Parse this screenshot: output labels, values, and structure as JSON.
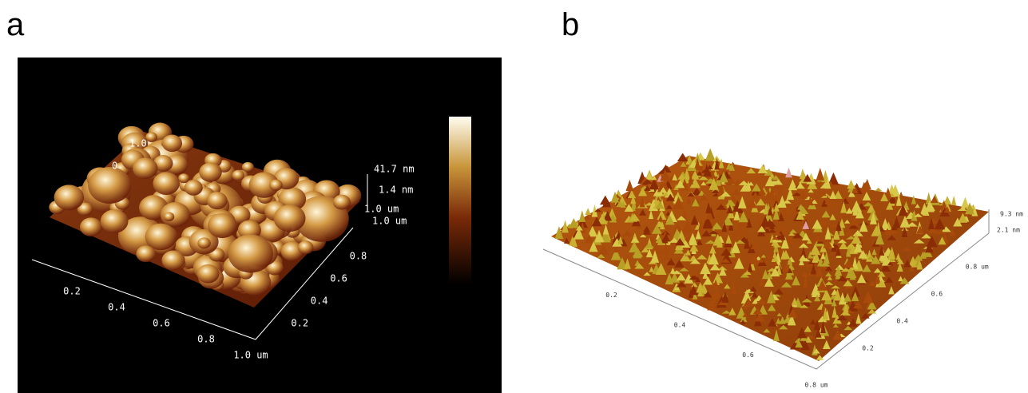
{
  "panels": [
    {
      "label": "a",
      "front_axis": [
        "0.2",
        "0.4",
        "0.6",
        "0.8",
        "1.0 um"
      ],
      "right_axis": [
        "0.2",
        "0.4",
        "0.6",
        "0.8"
      ],
      "back_labels": [
        "1.0",
        "0"
      ],
      "z_labels": [
        "41.7 nm",
        "1.4 nm",
        "1.0 um",
        "1.0 um"
      ]
    },
    {
      "label": "b",
      "front_axis": [
        "0.2",
        "0.4",
        "0.6",
        "0.8 um"
      ],
      "right_axis": [
        "0.2",
        "0.4",
        "0.6",
        "0.8 um"
      ],
      "z_labels": [
        "9.3 nm",
        "2.1 nm"
      ]
    }
  ]
}
